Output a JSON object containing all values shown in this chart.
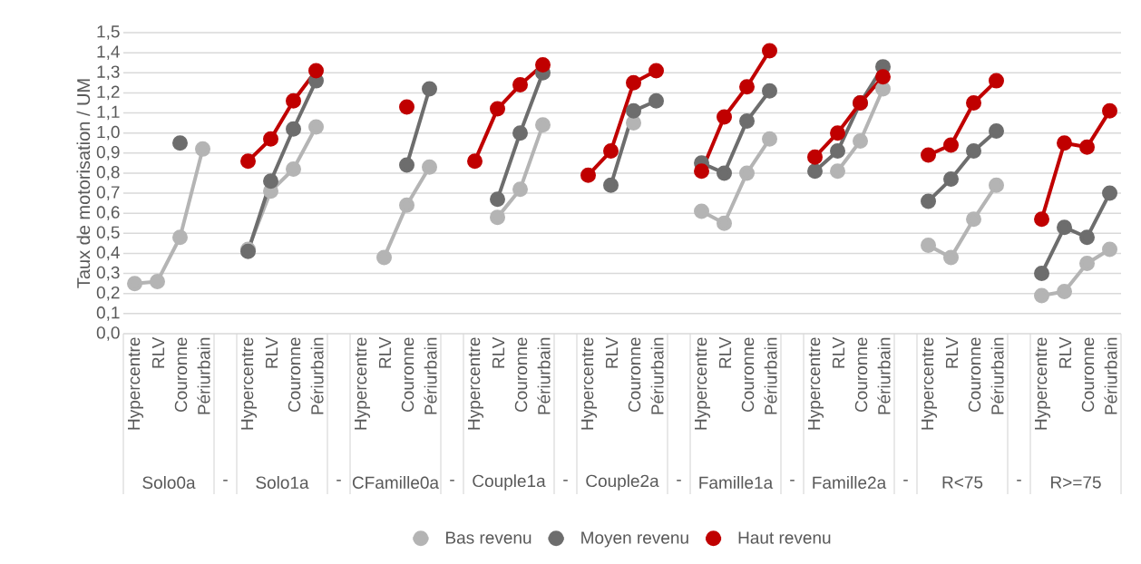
{
  "chart_data": {
    "type": "line",
    "ylabel": "Taux de motorisation / UM",
    "categories": [
      "Hypercentre",
      "RLV",
      "Couronne",
      "Périurbain",
      null,
      "Hypercentre",
      "RLV",
      "Couronne",
      "Périurbain",
      null,
      "Hypercentre",
      "RLV",
      "Couronne",
      "Périurbain",
      null,
      "Hypercentre",
      "RLV",
      "Couronne",
      "Périurbain",
      null,
      "Hypercentre",
      "RLV",
      "Couronne",
      "Périurbain",
      null,
      "Hypercentre",
      "RLV",
      "Couronne",
      "Périurbain",
      null,
      "Hypercentre",
      "RLV",
      "Couronne",
      "Périurbain",
      null,
      "Hypercentre",
      "RLV",
      "Couronne",
      "Périurbain",
      null,
      "Hypercentre",
      "RLV",
      "Couronne",
      "Périurbain"
    ],
    "annotations": [
      "Solo0a",
      "-",
      "Solo1a",
      "-",
      "CFamille0a",
      "-",
      "Couple1a",
      "-",
      "Couple2a",
      "-",
      "Famille1a",
      "-",
      "Famille2a",
      "-",
      "R<75",
      "-",
      "R>=75"
    ],
    "series": [
      {
        "name": "Bas revenu",
        "color": "#b4b4b4",
        "values": [
          0.25,
          0.26,
          0.48,
          0.92,
          null,
          0.42,
          0.71,
          0.82,
          1.03,
          null,
          null,
          0.38,
          0.64,
          0.83,
          null,
          null,
          0.58,
          0.72,
          1.04,
          null,
          null,
          null,
          1.05,
          null,
          null,
          0.61,
          0.55,
          0.8,
          0.97,
          null,
          null,
          0.81,
          0.96,
          1.22,
          null,
          0.44,
          0.38,
          0.57,
          0.74,
          null,
          0.19,
          0.21,
          0.35,
          0.42
        ]
      },
      {
        "name": "Moyen revenu",
        "color": "#6d6d6d",
        "values": [
          null,
          null,
          0.95,
          null,
          null,
          0.41,
          0.76,
          1.02,
          1.26,
          null,
          null,
          null,
          0.84,
          1.22,
          null,
          null,
          0.67,
          1.0,
          1.3,
          null,
          null,
          0.74,
          1.11,
          1.16,
          null,
          0.85,
          0.8,
          1.06,
          1.21,
          null,
          0.81,
          0.91,
          1.15,
          1.33,
          null,
          0.66,
          0.77,
          0.91,
          1.01,
          null,
          0.3,
          0.53,
          0.48,
          0.7
        ]
      },
      {
        "name": "Haut revenu",
        "color": "#c00000",
        "values": [
          null,
          null,
          null,
          null,
          null,
          0.86,
          0.97,
          1.16,
          1.31,
          null,
          null,
          null,
          1.13,
          null,
          null,
          0.86,
          1.12,
          1.24,
          1.34,
          null,
          0.79,
          0.91,
          1.25,
          1.31,
          null,
          0.81,
          1.08,
          1.23,
          1.41,
          null,
          0.88,
          1.0,
          1.15,
          1.28,
          null,
          0.89,
          0.94,
          1.15,
          1.26,
          null,
          0.57,
          0.95,
          0.93,
          1.11
        ]
      }
    ],
    "ylim": [
      0,
      1.5
    ],
    "yticks": [
      {
        "value": 0,
        "label": "0,0"
      },
      {
        "value": 0.1,
        "label": "0,1"
      },
      {
        "value": 0.2,
        "label": "0,2"
      },
      {
        "value": 0.3,
        "label": "0,3"
      },
      {
        "value": 0.4,
        "label": "0,4"
      },
      {
        "value": 0.5,
        "label": "0,5"
      },
      {
        "value": 0.6,
        "label": "0,6"
      },
      {
        "value": 0.7,
        "label": "0,7"
      },
      {
        "value": 0.8,
        "label": "0,8"
      },
      {
        "value": 0.9,
        "label": "0,9"
      },
      {
        "value": 1.0,
        "label": "1,0"
      },
      {
        "value": 1.1,
        "label": "1,1"
      },
      {
        "value": 1.2,
        "label": "1,2"
      },
      {
        "value": 1.3,
        "label": "1,3"
      },
      {
        "value": 1.4,
        "label": "1,4"
      },
      {
        "value": 1.5,
        "label": "1,5"
      }
    ],
    "grid": "y",
    "legend": "bottom",
    "marker": "circle",
    "line_style": "solid"
  }
}
